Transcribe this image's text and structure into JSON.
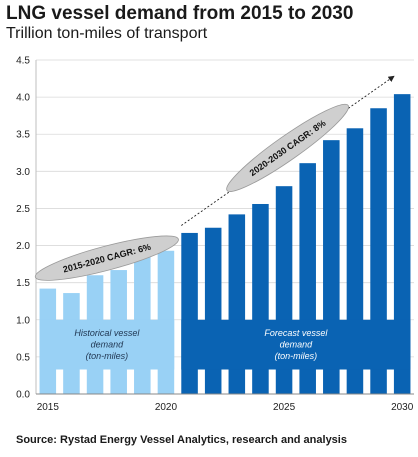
{
  "header": {
    "title": "LNG vessel demand from 2015 to 2030",
    "subtitle": "Trillion ton-miles of transport"
  },
  "footer": {
    "source": "Source: Rystad Energy Vessel Analytics, research and analysis"
  },
  "colors": {
    "historical": "#99d1f5",
    "forecast": "#0a63b3",
    "grid": "#d9d9d9",
    "ellipse": "#cfcfcf"
  },
  "chart_data": {
    "type": "bar",
    "title": "LNG vessel demand from 2015 to 2030",
    "ylabel": "",
    "xlabel": "",
    "ylim": [
      0,
      4.5
    ],
    "yticks": [
      "0.0",
      "0.5",
      "1.0",
      "1.5",
      "2.0",
      "2.5",
      "3.0",
      "3.5",
      "4.0",
      "4.5"
    ],
    "xticks": [
      "2015",
      "2020",
      "2025",
      "2030"
    ],
    "grid": true,
    "categories": [
      2015,
      2016,
      2017,
      2018,
      2019,
      2020,
      2021,
      2022,
      2023,
      2024,
      2025,
      2026,
      2027,
      2028,
      2029,
      2030
    ],
    "series": [
      {
        "name": "Historical vessel demand (ton-miles)",
        "values": [
          1.42,
          1.36,
          1.6,
          1.67,
          1.85,
          1.93,
          null,
          null,
          null,
          null,
          null,
          null,
          null,
          null,
          null,
          null
        ]
      },
      {
        "name": "Forecast vessel demand (ton-miles)",
        "values": [
          null,
          null,
          null,
          null,
          null,
          null,
          2.17,
          2.24,
          2.42,
          2.56,
          2.8,
          3.11,
          3.42,
          3.58,
          3.85,
          4.04
        ]
      }
    ],
    "annotations": [
      {
        "text": "2015-2020 CAGR: 6%"
      },
      {
        "text": "2020-2030 CAGR: 8%"
      }
    ],
    "band_labels": {
      "historical": [
        "Historical vessel",
        "demand",
        "(ton-miles)"
      ],
      "forecast": [
        "Forecast vessel",
        "demand",
        "(ton-miles)"
      ]
    }
  }
}
